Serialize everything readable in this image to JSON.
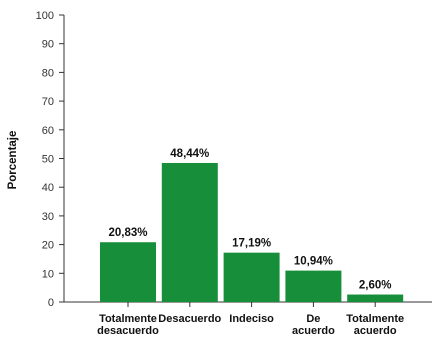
{
  "chart_data": {
    "type": "bar",
    "ylabel": "Porcentaje",
    "ylim": [
      0,
      100
    ],
    "yticks": [
      0,
      10,
      20,
      30,
      40,
      50,
      60,
      70,
      80,
      90,
      100
    ],
    "categories": [
      [
        "Totalmente",
        "desacuerdo"
      ],
      [
        "Desacuerdo"
      ],
      [
        "Indeciso"
      ],
      [
        "De",
        "acuerdo"
      ],
      [
        "Totalmente",
        "acuerdo"
      ]
    ],
    "values": [
      20.83,
      48.44,
      17.19,
      10.94,
      2.6
    ],
    "data_labels": [
      "20,83%",
      "48,44%",
      "17,19%",
      "10,94%",
      "2,60%"
    ],
    "bar_color": "#178f3a",
    "grid": false,
    "legend": "none"
  }
}
